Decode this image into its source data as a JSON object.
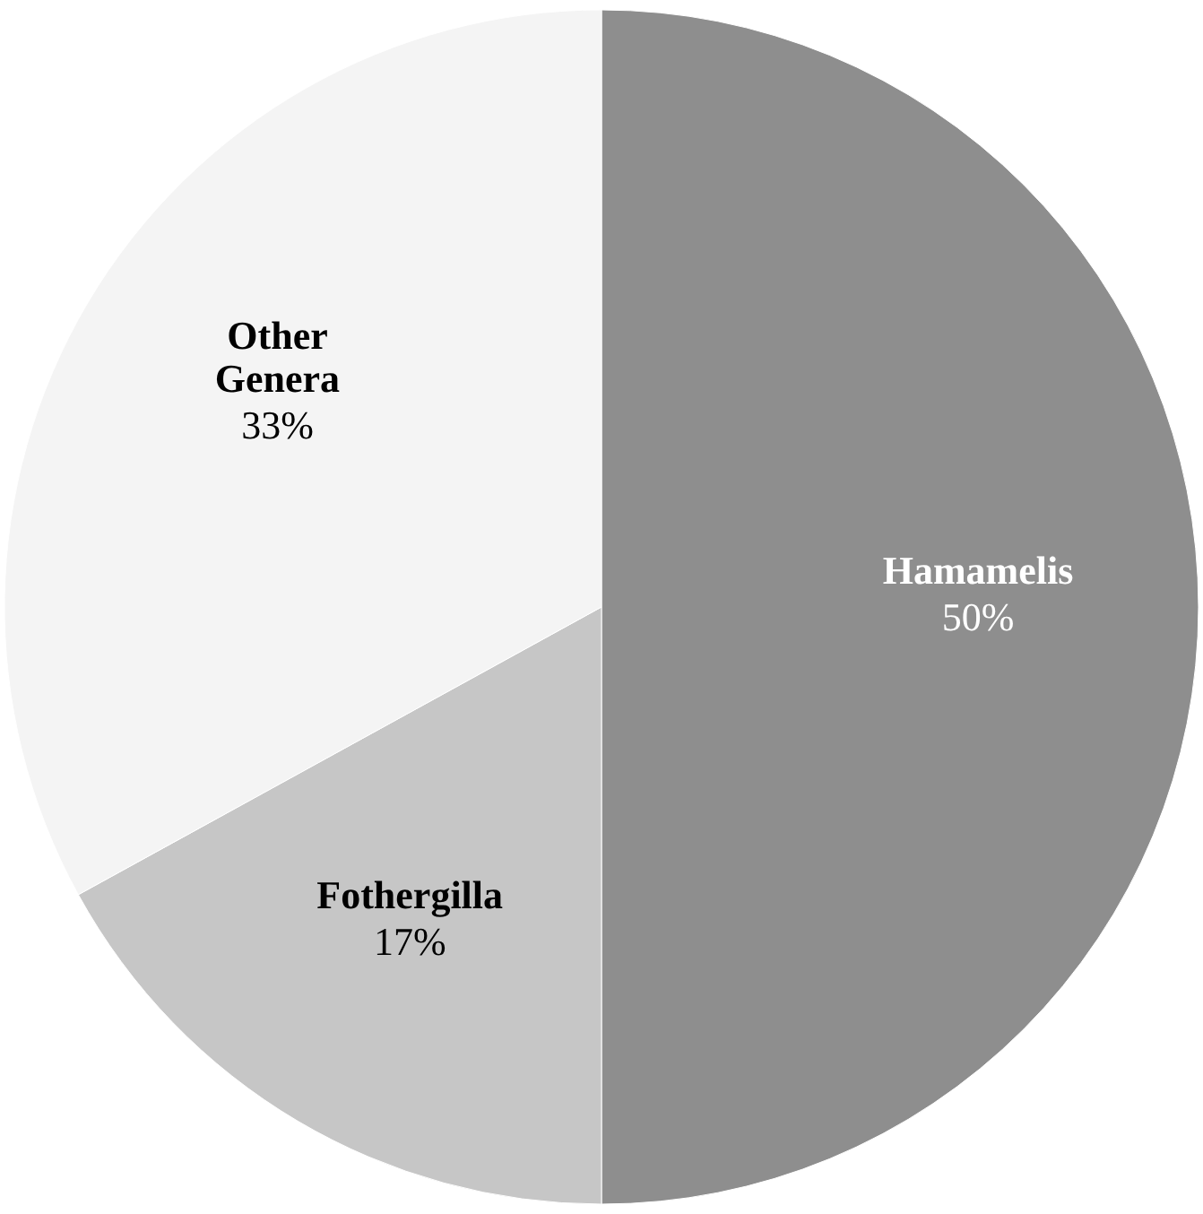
{
  "chart_data": {
    "type": "pie",
    "categories": [
      "Hamamelis",
      "Fothergilla",
      "Other Genera"
    ],
    "values": [
      50,
      17,
      33
    ],
    "colors": [
      "#8e8e8e",
      "#c6c6c6",
      "#f4f4f4"
    ],
    "value_labels": [
      "50%",
      "17%",
      "33%"
    ],
    "legend": false
  }
}
